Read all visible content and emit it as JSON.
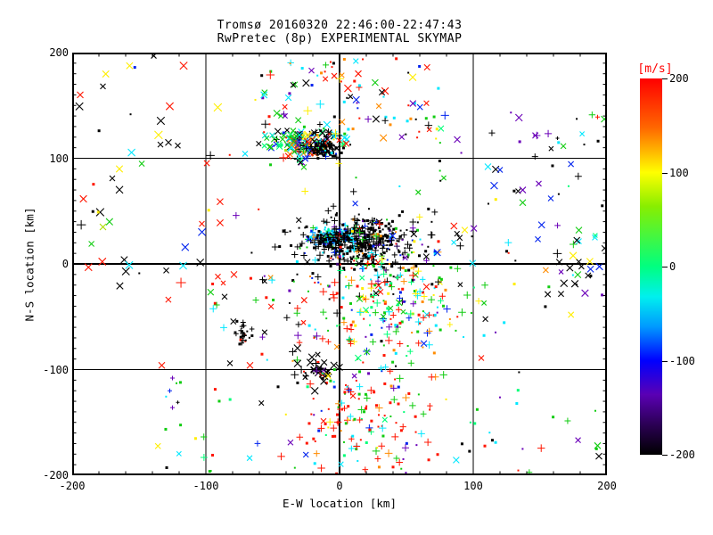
{
  "window": {
    "title_line1": "Tromsø 20160320 22:46:00-22:47:43",
    "title_line2": "RwPretec (8p) EXPERIMENTAL SKYMAP"
  },
  "chart_data": {
    "type": "scatter",
    "title": "Tromsø 20160320 22:46:00-22:47:43",
    "subtitle": "RwPretec (8p) EXPERIMENTAL SKYMAP",
    "xlabel": "E-W location [km]",
    "ylabel": "N-S location [km]",
    "xlim": [
      -200,
      200
    ],
    "ylim": [
      -200,
      200
    ],
    "x_tick_values": [
      -200,
      -100,
      0,
      100,
      200
    ],
    "x_tick_labels": [
      "-200",
      "-100",
      "0",
      "100",
      "200"
    ],
    "y_tick_values": [
      -200,
      -100,
      0,
      100,
      200
    ],
    "y_tick_labels": [
      "-200",
      "-100",
      "0",
      "100",
      "200"
    ],
    "x_minor_step": 20,
    "y_minor_step": 10,
    "grid_values": [
      -100,
      0,
      100
    ],
    "grid_on": true,
    "colorbar": {
      "label": "[m/s]",
      "label_color": "#ff0000",
      "tick_values": [
        200,
        100,
        0,
        -100,
        -200
      ],
      "tick_labels": [
        "200",
        "100",
        "0",
        "-100",
        "-200"
      ],
      "gradient_stops": [
        {
          "pos": 0,
          "color": "#ff0000"
        },
        {
          "pos": 13,
          "color": "#ff6600"
        },
        {
          "pos": 25,
          "color": "#ffff00"
        },
        {
          "pos": 34,
          "color": "#88ee00"
        },
        {
          "pos": 50,
          "color": "#00ff80"
        },
        {
          "pos": 58,
          "color": "#00f0ee"
        },
        {
          "pos": 66,
          "color": "#0099ff"
        },
        {
          "pos": 75,
          "color": "#0000ff"
        },
        {
          "pos": 84,
          "color": "#5a00b4"
        },
        {
          "pos": 92,
          "color": "#2b0054"
        },
        {
          "pos": 100,
          "color": "#000000"
        }
      ]
    },
    "palette": {
      "black": "#000000",
      "red": "#ff1500",
      "orange": "#ff8c00",
      "yellow": "#ffee00",
      "yellowgreen": "#aadd00",
      "green": "#11cc11",
      "spring": "#00ff77",
      "teal": "#00ddcc",
      "cyan": "#00e8ff",
      "lightblue": "#0099ff",
      "blue": "#0022ee",
      "purple": "#6a00b8",
      "darkpurple": "#3a0070"
    },
    "clusters": [
      {
        "name": "central-core-cyan",
        "seed": 11,
        "n": 130,
        "dist": "gauss",
        "cx": -6,
        "cy": 26,
        "sx": 9,
        "sy": 5,
        "markers": {
          "dot": 70,
          "plus": 30
        },
        "dotSize": [
          2,
          3
        ],
        "xSize": [
          5,
          6
        ],
        "colors": {
          "cyan": 38,
          "lightblue": 20,
          "blue": 12,
          "black": 15,
          "purple": 6,
          "green": 5,
          "spring": 4
        }
      },
      {
        "name": "central-black-cloud",
        "seed": 12,
        "n": 380,
        "dist": "gauss",
        "cx": 12,
        "cy": 22,
        "sx": 18,
        "sy": 11,
        "markers": {
          "dot": 72,
          "plus": 28
        },
        "dotSize": [
          2,
          3
        ],
        "xSize": [
          5,
          6
        ],
        "colors": {
          "black": 82,
          "darkpurple": 5,
          "cyan": 3,
          "blue": 3,
          "green": 3,
          "red": 2,
          "orange": 2
        }
      },
      {
        "name": "central-halo",
        "seed": 13,
        "n": 170,
        "dist": "gauss",
        "cx": 18,
        "cy": 14,
        "sx": 34,
        "sy": 23,
        "markers": {
          "dot": 60,
          "plus": 32,
          "x": 8
        },
        "dotSize": [
          2,
          3
        ],
        "xSize": [
          5,
          7
        ],
        "colors": {
          "black": 68,
          "green": 7,
          "cyan": 6,
          "red": 5,
          "purple": 5,
          "yellow": 3,
          "orange": 3,
          "blue": 3
        }
      },
      {
        "name": "upper-multicolor-x",
        "seed": 21,
        "n": 150,
        "dist": "gauss",
        "cx": -22,
        "cy": 114,
        "sx": 14,
        "sy": 8,
        "markers": {
          "x": 68,
          "plus": 18,
          "dot": 14
        },
        "dotSize": [
          2,
          3
        ],
        "xSize": [
          5,
          8
        ],
        "colors": {
          "black": 27,
          "green": 14,
          "cyan": 12,
          "orange": 9,
          "red": 9,
          "blue": 9,
          "purple": 9,
          "yellow": 5,
          "spring": 6
        }
      },
      {
        "name": "upper-black-dots",
        "seed": 22,
        "n": 70,
        "dist": "gauss",
        "cx": -12,
        "cy": 108,
        "sx": 6,
        "sy": 4,
        "markers": {
          "dot": 80,
          "plus": 20
        },
        "dotSize": [
          2,
          3
        ],
        "xSize": [
          4,
          5
        ],
        "colors": {
          "black": 88,
          "blue": 6,
          "cyan": 6
        }
      },
      {
        "name": "upper-green-x",
        "seed": 23,
        "n": 22,
        "dist": "gauss",
        "cx": -45,
        "cy": 117,
        "sx": 8,
        "sy": 5,
        "markers": {
          "x": 85,
          "dot": 15
        },
        "dotSize": [
          2,
          3
        ],
        "xSize": [
          5,
          7
        ],
        "colors": {
          "green": 50,
          "spring": 20,
          "teal": 15,
          "yellowgreen": 15
        }
      },
      {
        "name": "lower-right-fan",
        "seed": 31,
        "n": 230,
        "dist": "gauss",
        "cx": 35,
        "cy": -42,
        "sx": 26,
        "sy": 28,
        "markers": {
          "dot": 55,
          "plus": 35,
          "x": 10
        },
        "dotSize": [
          2,
          3
        ],
        "xSize": [
          5,
          7
        ],
        "colors": {
          "green": 22,
          "red": 20,
          "cyan": 13,
          "spring": 10,
          "orange": 8,
          "yellow": 8,
          "blue": 6,
          "black": 7,
          "purple": 6
        }
      },
      {
        "name": "bottom-red-cluster",
        "seed": 41,
        "n": 140,
        "dist": "gauss",
        "cx": 17,
        "cy": -148,
        "sx": 24,
        "sy": 26,
        "markers": {
          "dot": 55,
          "plus": 38,
          "x": 7
        },
        "dotSize": [
          2,
          3
        ],
        "xSize": [
          5,
          7
        ],
        "colors": {
          "red": 52,
          "green": 14,
          "spring": 7,
          "cyan": 8,
          "orange": 6,
          "yellow": 5,
          "blue": 4,
          "purple": 4
        }
      },
      {
        "name": "top-scattered",
        "seed": 51,
        "n": 95,
        "dist": "uniform",
        "x0": -60,
        "x1": 75,
        "y0": 118,
        "y1": 195,
        "markers": {
          "dot": 45,
          "plus": 20,
          "x": 35
        },
        "dotSize": [
          2,
          3
        ],
        "xSize": [
          5,
          8
        ],
        "colors": {
          "red": 24,
          "black": 20,
          "green": 14,
          "yellow": 9,
          "orange": 9,
          "cyan": 9,
          "blue": 7,
          "purple": 8
        }
      },
      {
        "name": "left-sparse-x",
        "seed": 61,
        "n": 48,
        "dist": "uniform",
        "x0": -195,
        "x1": -60,
        "y0": -45,
        "y1": 195,
        "markers": {
          "x": 72,
          "dot": 18,
          "plus": 10
        },
        "dotSize": [
          2,
          3
        ],
        "xSize": [
          6,
          9
        ],
        "colors": {
          "black": 38,
          "red": 24,
          "green": 10,
          "yellow": 8,
          "cyan": 8,
          "purple": 6,
          "blue": 6
        }
      },
      {
        "name": "right-sparse",
        "seed": 71,
        "n": 75,
        "dist": "uniform",
        "x0": 65,
        "x1": 198,
        "y0": -65,
        "y1": 145,
        "markers": {
          "x": 50,
          "dot": 32,
          "plus": 18
        },
        "dotSize": [
          2,
          3
        ],
        "xSize": [
          5,
          8
        ],
        "colors": {
          "black": 36,
          "cyan": 12,
          "blue": 10,
          "green": 12,
          "purple": 9,
          "red": 8,
          "yellow": 5,
          "orange": 4,
          "spring": 4
        }
      },
      {
        "name": "right-edge-x-cluster",
        "seed": 72,
        "n": 18,
        "dist": "gauss",
        "cx": 178,
        "cy": 2,
        "sx": 12,
        "sy": 10,
        "markers": {
          "x": 90,
          "dot": 10
        },
        "dotSize": [
          2,
          3
        ],
        "xSize": [
          6,
          8
        ],
        "colors": {
          "black": 45,
          "cyan": 15,
          "yellow": 10,
          "blue": 10,
          "green": 10,
          "purple": 10
        }
      },
      {
        "name": "black-cluster-left",
        "seed": 81,
        "n": 26,
        "dist": "gauss",
        "cx": -72,
        "cy": -63,
        "sx": 3.5,
        "sy": 7,
        "markers": {
          "dot": 55,
          "plus": 45
        },
        "dotSize": [
          2,
          3
        ],
        "xSize": [
          4,
          5
        ],
        "colors": {
          "black": 92,
          "red": 8
        }
      },
      {
        "name": "black-x-cluster",
        "seed": 82,
        "n": 40,
        "dist": "gauss",
        "cx": -19,
        "cy": -99,
        "sx": 9,
        "sy": 8,
        "markers": {
          "x": 55,
          "dot": 30,
          "plus": 15
        },
        "dotSize": [
          2,
          3
        ],
        "xSize": [
          5,
          8
        ],
        "colors": {
          "black": 90,
          "red": 5,
          "purple": 5
        }
      },
      {
        "name": "bottom-sparse",
        "seed": 91,
        "n": 65,
        "dist": "uniform",
        "x0": -140,
        "x1": 198,
        "y0": -198,
        "y1": -102,
        "markers": {
          "dot": 70,
          "plus": 18,
          "x": 12
        },
        "dotSize": [
          2,
          3
        ],
        "xSize": [
          5,
          7
        ],
        "colors": {
          "green": 22,
          "red": 14,
          "cyan": 12,
          "black": 12,
          "spring": 12,
          "blue": 8,
          "purple": 8,
          "yellow": 6,
          "orange": 6
        }
      },
      {
        "name": "lower-left-of-center",
        "seed": 92,
        "n": 25,
        "dist": "uniform",
        "x0": -100,
        "x1": 5,
        "y0": -95,
        "y1": -5,
        "markers": {
          "dot": 50,
          "plus": 25,
          "x": 25
        },
        "dotSize": [
          2,
          3
        ],
        "xSize": [
          5,
          7
        ],
        "colors": {
          "red": 25,
          "black": 25,
          "purple": 15,
          "cyan": 10,
          "green": 10,
          "blue": 8,
          "orange": 7
        }
      }
    ],
    "outlier_points": [
      {
        "x": -194,
        "y": 160,
        "c": "red",
        "m": "x",
        "s": 7
      },
      {
        "x": -177,
        "y": 168,
        "c": "black",
        "m": "x",
        "s": 6
      },
      {
        "x": -139,
        "y": 197,
        "c": "black",
        "m": "x",
        "s": 6
      },
      {
        "x": -134,
        "y": 113,
        "c": "black",
        "m": "x",
        "s": 6
      },
      {
        "x": -128,
        "y": 115,
        "c": "black",
        "m": "x",
        "s": 7
      },
      {
        "x": -121,
        "y": 112,
        "c": "black",
        "m": "x",
        "s": 6
      },
      {
        "x": -170,
        "y": 81,
        "c": "black",
        "m": "x",
        "s": 6
      },
      {
        "x": -177,
        "y": 35,
        "c": "yellowgreen",
        "m": "x",
        "s": 7
      },
      {
        "x": -103,
        "y": 38,
        "c": "red",
        "m": "x",
        "s": 6
      },
      {
        "x": -91,
        "y": -12,
        "c": "red",
        "m": "x",
        "s": 6
      },
      {
        "x": -79,
        "y": -10,
        "c": "red",
        "m": "x",
        "s": 7
      },
      {
        "x": -87,
        "y": -18,
        "c": "red",
        "m": "x",
        "s": 5
      },
      {
        "x": -86,
        "y": -31,
        "c": "black",
        "m": "x",
        "s": 6
      },
      {
        "x": -133,
        "y": -96,
        "c": "red",
        "m": "x",
        "s": 7
      },
      {
        "x": -82,
        "y": -94,
        "c": "black",
        "m": "x",
        "s": 6
      },
      {
        "x": -67,
        "y": -96,
        "c": "red",
        "m": "x",
        "s": 7
      },
      {
        "x": -125,
        "y": -108,
        "c": "purple",
        "m": "plus",
        "s": 4
      },
      {
        "x": -127,
        "y": -120,
        "c": "blue",
        "m": "plus",
        "s": 4
      },
      {
        "x": -121,
        "y": -131,
        "c": "black",
        "m": "plus",
        "s": 3
      },
      {
        "x": -125,
        "y": -136,
        "c": "purple",
        "m": "plus",
        "s": 4
      },
      {
        "x": -95,
        "y": -181,
        "c": "red",
        "m": "dot",
        "s": 3
      },
      {
        "x": 198,
        "y": 137,
        "c": "green",
        "m": "x",
        "s": 7
      },
      {
        "x": 193,
        "y": 139,
        "c": "red",
        "m": "plus",
        "s": 4
      },
      {
        "x": 163,
        "y": 119,
        "c": "black",
        "m": "plus",
        "s": 3
      },
      {
        "x": 183,
        "y": 113,
        "c": "black",
        "m": "dot",
        "s": 2
      },
      {
        "x": 111,
        "y": 92,
        "c": "cyan",
        "m": "x",
        "s": 7
      },
      {
        "x": 120,
        "y": 89,
        "c": "blue",
        "m": "x",
        "s": 6
      },
      {
        "x": 137,
        "y": 70,
        "c": "purple",
        "m": "x",
        "s": 7
      },
      {
        "x": 149,
        "y": 76,
        "c": "purple",
        "m": "x",
        "s": 6
      },
      {
        "x": 158,
        "y": 62,
        "c": "blue",
        "m": "x",
        "s": 6
      },
      {
        "x": 137,
        "y": 58,
        "c": "green",
        "m": "x",
        "s": 7
      },
      {
        "x": 179,
        "y": 32,
        "c": "green",
        "m": "x",
        "s": 7
      },
      {
        "x": 191,
        "y": 25,
        "c": "cyan",
        "m": "x",
        "s": 6
      },
      {
        "x": 106,
        "y": -89,
        "c": "red",
        "m": "x",
        "s": 6
      },
      {
        "x": 193,
        "y": -172,
        "c": "green",
        "m": "x",
        "s": 7
      },
      {
        "x": 194,
        "y": -182,
        "c": "black",
        "m": "x",
        "s": 7
      },
      {
        "x": -21,
        "y": 183,
        "c": "purple",
        "m": "x",
        "s": 6
      },
      {
        "x": -4,
        "y": 178,
        "c": "red",
        "m": "x",
        "s": 6
      },
      {
        "x": 14,
        "y": 180,
        "c": "red",
        "m": "x",
        "s": 7
      }
    ]
  }
}
